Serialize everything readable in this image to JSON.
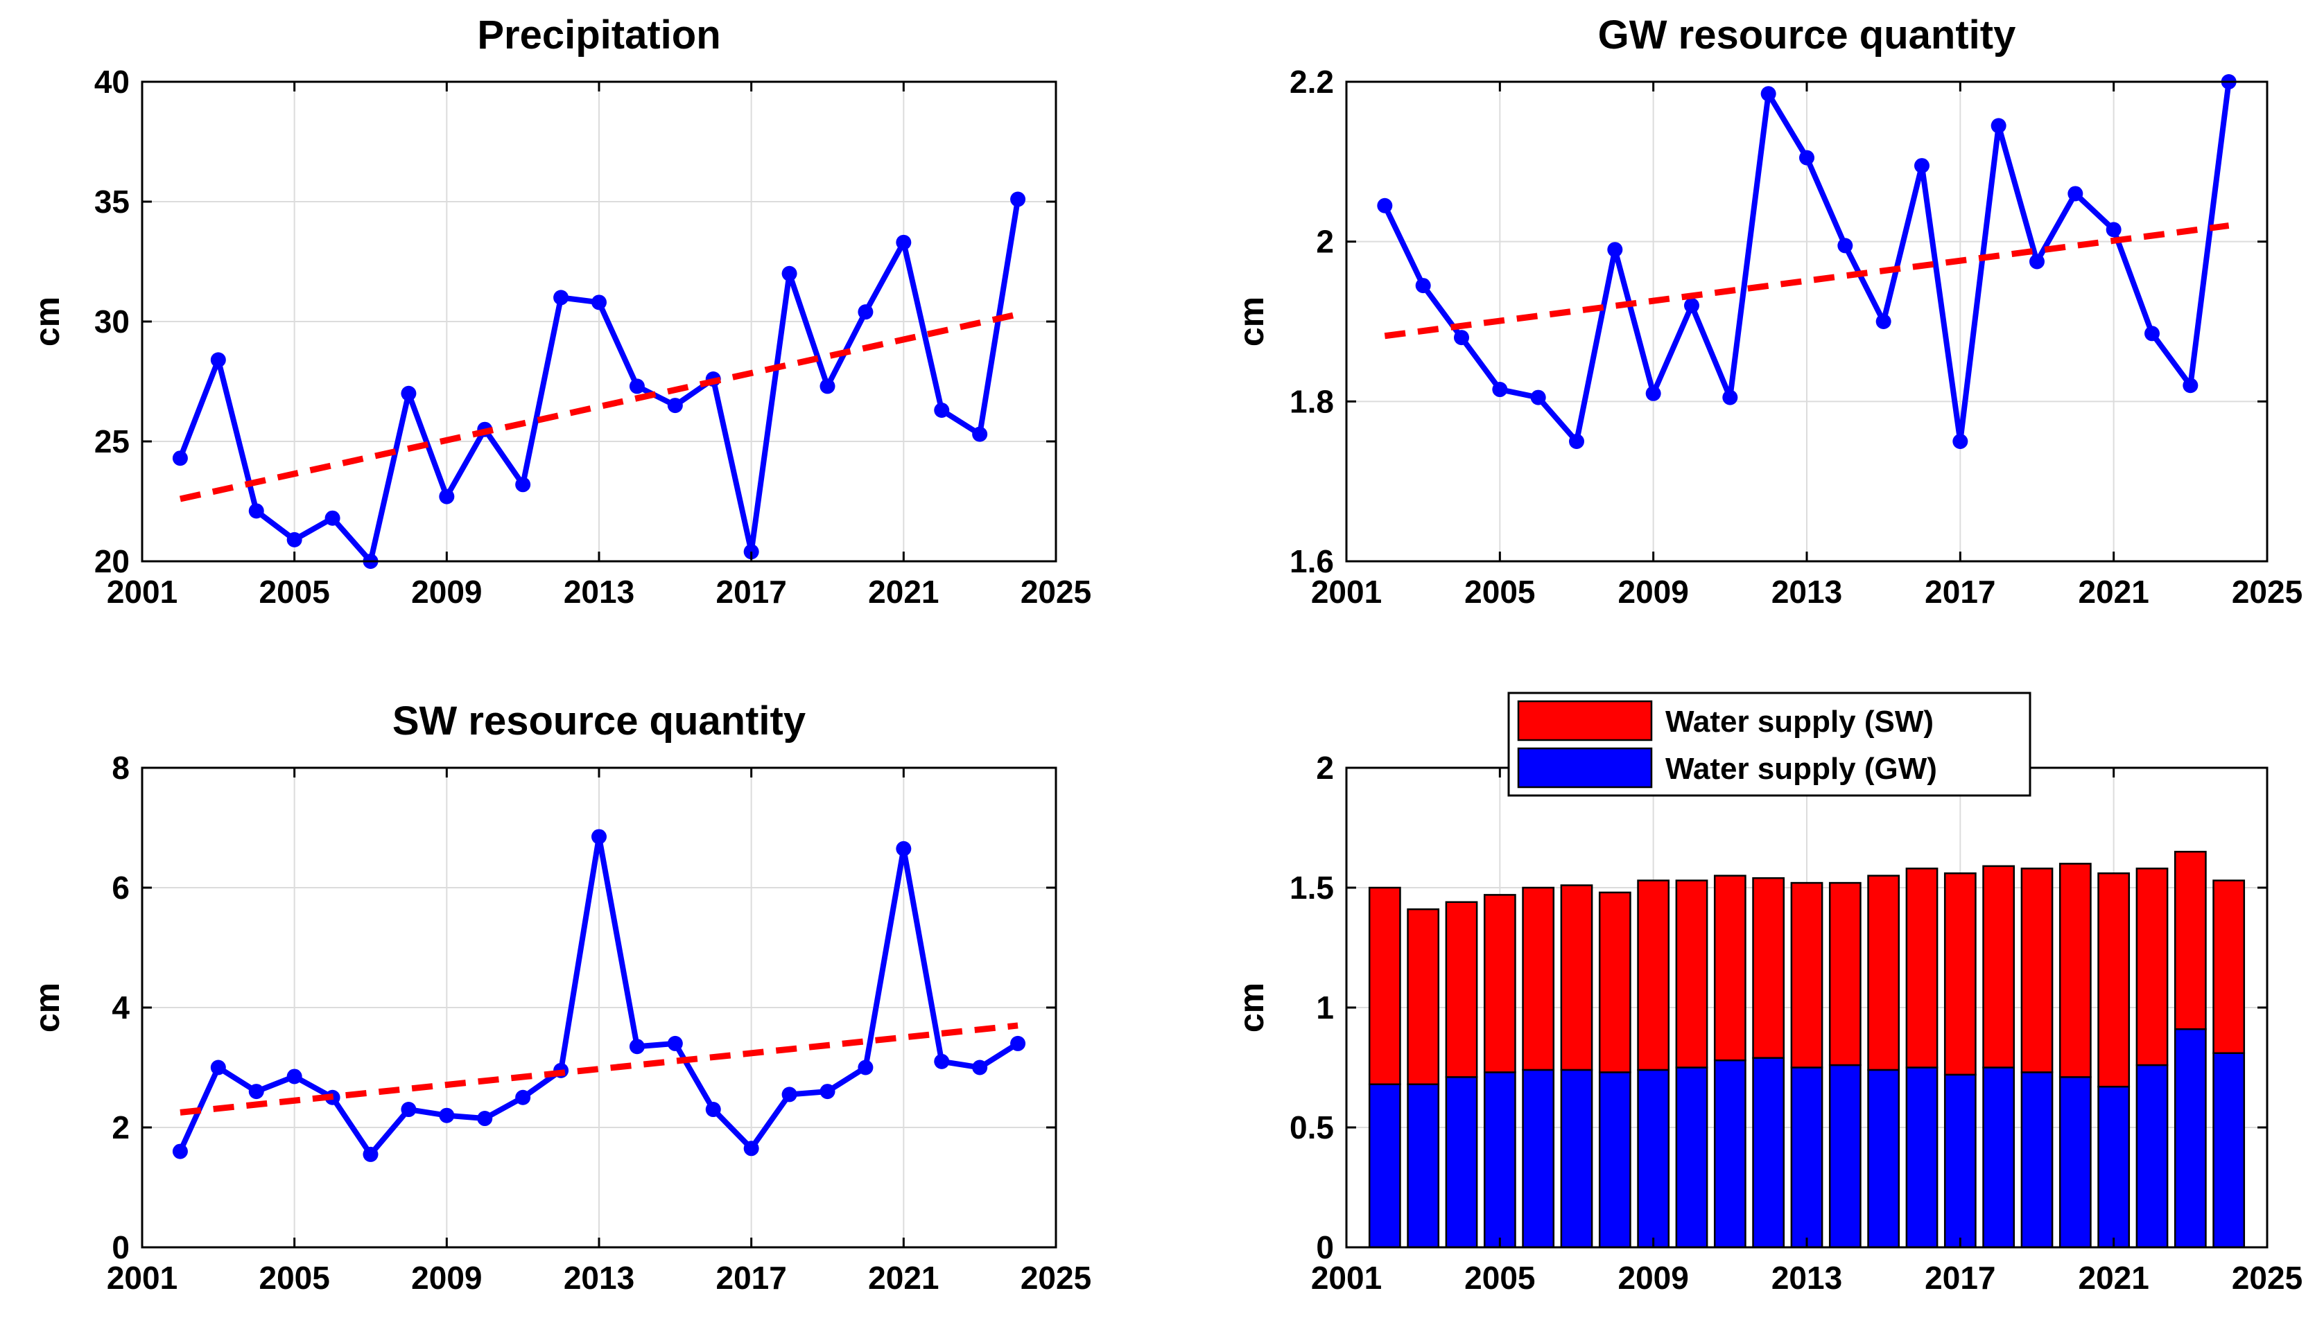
{
  "chart_data": [
    {
      "type": "line",
      "title": "Precipitation",
      "xlabel": "",
      "ylabel": "cm",
      "xlim": [
        2001,
        2025
      ],
      "ylim": [
        20,
        40
      ],
      "x_ticks": [
        "2001",
        "2005",
        "2009",
        "2013",
        "2017",
        "2021",
        "2025"
      ],
      "y_ticks": [
        "20",
        "25",
        "30",
        "35",
        "40"
      ],
      "grid": true,
      "x": [
        2002,
        2003,
        2004,
        2005,
        2006,
        2007,
        2008,
        2009,
        2010,
        2011,
        2012,
        2013,
        2014,
        2015,
        2016,
        2017,
        2018,
        2019,
        2020,
        2021,
        2022,
        2023,
        2024
      ],
      "series": [
        {
          "style": "solid-markers",
          "color": "#0000ff",
          "values": [
            24.3,
            28.4,
            22.1,
            20.9,
            21.8,
            20.0,
            27.0,
            22.7,
            25.5,
            23.2,
            31.0,
            30.8,
            27.3,
            26.5,
            27.6,
            20.4,
            32.0,
            27.3,
            30.4,
            33.3,
            26.3,
            25.3,
            35.1
          ]
        },
        {
          "style": "dashed-trend",
          "color": "#ff0000",
          "x": [
            2002,
            2024
          ],
          "values": [
            22.6,
            30.3
          ]
        }
      ]
    },
    {
      "type": "line",
      "title": "GW resource quantity",
      "xlabel": "",
      "ylabel": "cm",
      "xlim": [
        2001,
        2025
      ],
      "ylim": [
        1.6,
        2.2
      ],
      "x_ticks": [
        "2001",
        "2005",
        "2009",
        "2013",
        "2017",
        "2021",
        "2025"
      ],
      "y_ticks": [
        "1.6",
        "1.8",
        "2",
        "2.2"
      ],
      "grid": true,
      "x": [
        2002,
        2003,
        2004,
        2005,
        2006,
        2007,
        2008,
        2009,
        2010,
        2011,
        2012,
        2013,
        2014,
        2015,
        2016,
        2017,
        2018,
        2019,
        2020,
        2021,
        2022,
        2023,
        2024
      ],
      "series": [
        {
          "style": "solid-markers",
          "color": "#0000ff",
          "values": [
            2.045,
            1.945,
            1.88,
            1.815,
            1.805,
            1.75,
            1.99,
            1.81,
            1.92,
            1.805,
            2.185,
            2.105,
            1.995,
            1.9,
            2.095,
            1.75,
            2.145,
            1.975,
            2.06,
            2.015,
            1.885,
            1.82,
            2.2
          ]
        },
        {
          "style": "dashed-trend",
          "color": "#ff0000",
          "x": [
            2002,
            2024
          ],
          "values": [
            1.882,
            2.02
          ]
        }
      ]
    },
    {
      "type": "line",
      "title": "SW resource quantity",
      "xlabel": "",
      "ylabel": "cm",
      "xlim": [
        2001,
        2025
      ],
      "ylim": [
        0,
        8
      ],
      "x_ticks": [
        "2001",
        "2005",
        "2009",
        "2013",
        "2017",
        "2021",
        "2025"
      ],
      "y_ticks": [
        "0",
        "2",
        "4",
        "6",
        "8"
      ],
      "grid": true,
      "x": [
        2002,
        2003,
        2004,
        2005,
        2006,
        2007,
        2008,
        2009,
        2010,
        2011,
        2012,
        2013,
        2014,
        2015,
        2016,
        2017,
        2018,
        2019,
        2020,
        2021,
        2022,
        2023,
        2024
      ],
      "series": [
        {
          "style": "solid-markers",
          "color": "#0000ff",
          "values": [
            1.6,
            3.0,
            2.6,
            2.85,
            2.5,
            1.55,
            2.3,
            2.2,
            2.15,
            2.5,
            2.95,
            6.85,
            3.35,
            3.4,
            2.3,
            1.65,
            2.55,
            2.6,
            3.0,
            6.65,
            3.1,
            3.0,
            3.4
          ]
        },
        {
          "style": "dashed-trend",
          "color": "#ff0000",
          "x": [
            2002,
            2024
          ],
          "values": [
            2.25,
            3.7
          ]
        }
      ]
    },
    {
      "type": "bar",
      "stacked": true,
      "title": "",
      "xlabel": "",
      "ylabel": "cm",
      "xlim": [
        2001,
        2025
      ],
      "ylim": [
        0,
        2
      ],
      "x_ticks": [
        "2001",
        "2005",
        "2009",
        "2013",
        "2017",
        "2021",
        "2025"
      ],
      "y_ticks": [
        "0",
        "0.5",
        "1",
        "1.5",
        "2"
      ],
      "grid": true,
      "legend_position": "top-outside",
      "x": [
        2002,
        2003,
        2004,
        2005,
        2006,
        2007,
        2008,
        2009,
        2010,
        2011,
        2012,
        2013,
        2014,
        2015,
        2016,
        2017,
        2018,
        2019,
        2020,
        2021,
        2022,
        2023,
        2024
      ],
      "series": [
        {
          "name": "Water supply (GW)",
          "color": "#0000ff",
          "values": [
            0.68,
            0.68,
            0.71,
            0.73,
            0.74,
            0.74,
            0.73,
            0.74,
            0.75,
            0.78,
            0.79,
            0.75,
            0.76,
            0.74,
            0.75,
            0.72,
            0.75,
            0.73,
            0.71,
            0.67,
            0.76,
            0.91,
            0.81
          ]
        },
        {
          "name": "Water supply (SW)",
          "color": "#ff0000",
          "values": [
            0.82,
            0.73,
            0.73,
            0.74,
            0.76,
            0.77,
            0.75,
            0.79,
            0.78,
            0.77,
            0.75,
            0.77,
            0.76,
            0.81,
            0.83,
            0.84,
            0.84,
            0.85,
            0.89,
            0.89,
            0.82,
            0.74,
            0.72
          ]
        }
      ],
      "legend_order": [
        "Water supply (SW)",
        "Water supply (GW)"
      ]
    }
  ]
}
